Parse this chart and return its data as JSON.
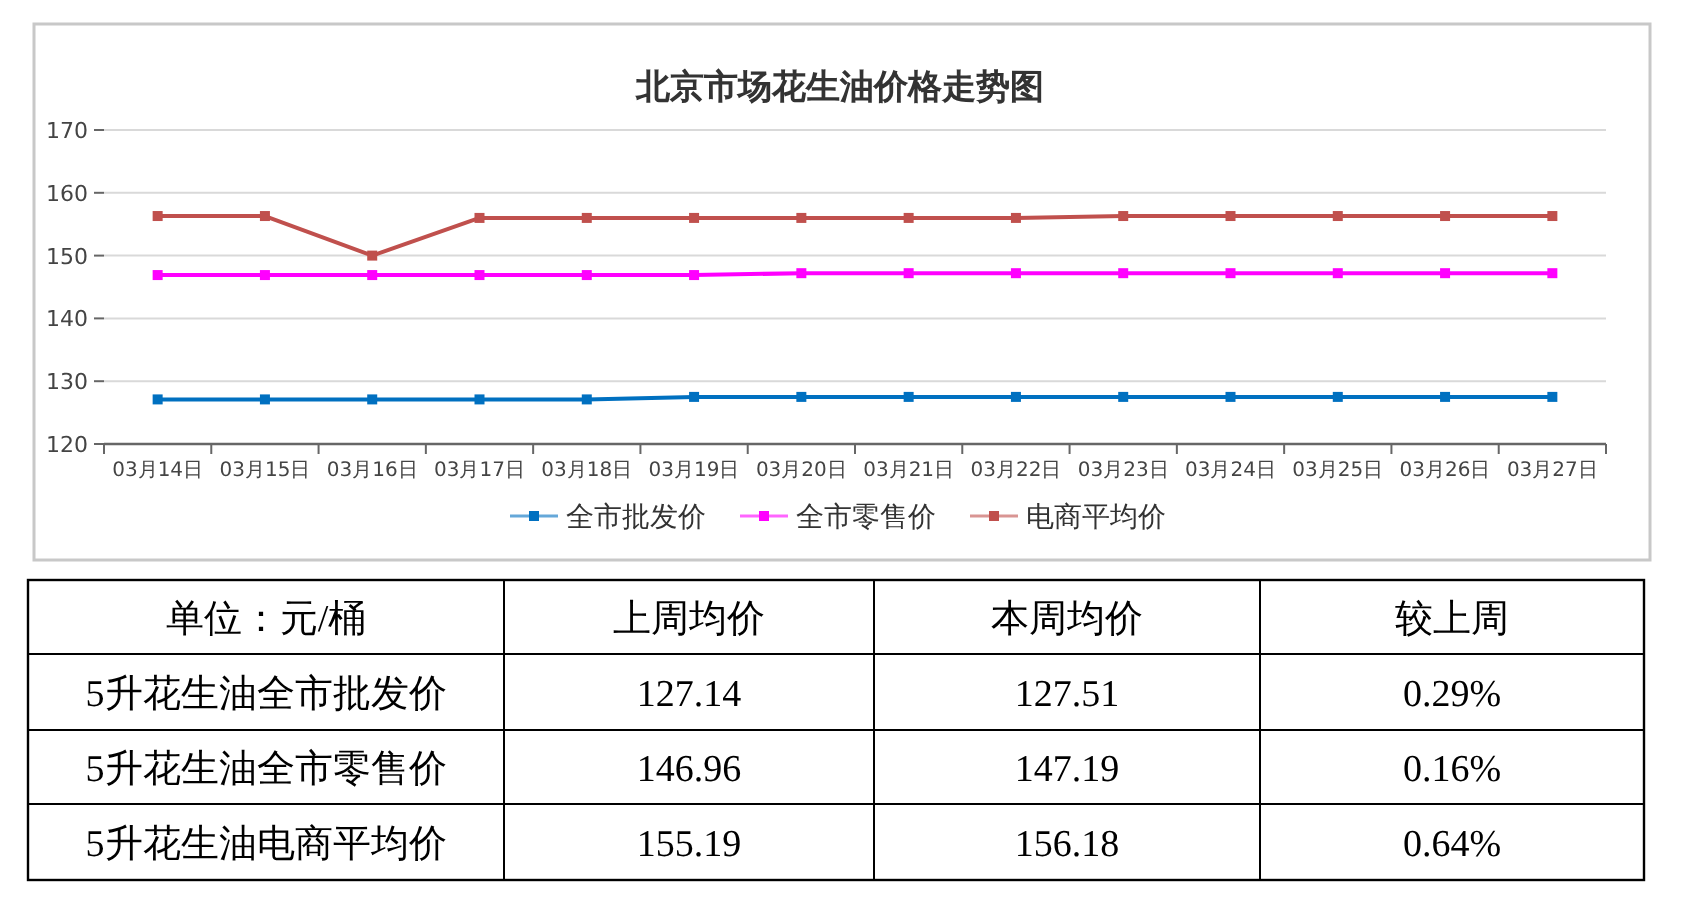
{
  "chart_data": [
    {
      "type": "line",
      "title": "北京市场花生油价格走势图",
      "categories": [
        "03月14日",
        "03月15日",
        "03月16日",
        "03月17日",
        "03月18日",
        "03月19日",
        "03月20日",
        "03月21日",
        "03月22日",
        "03月23日",
        "03月24日",
        "03月25日",
        "03月26日",
        "03月27日"
      ],
      "series": [
        {
          "name": "全市批发价",
          "color": "#0070c0",
          "values": [
            127.1,
            127.1,
            127.1,
            127.1,
            127.1,
            127.5,
            127.5,
            127.5,
            127.5,
            127.5,
            127.5,
            127.5,
            127.5,
            127.5
          ]
        },
        {
          "name": "全市零售价",
          "color": "#ff00ff",
          "values": [
            146.9,
            146.9,
            146.9,
            146.9,
            146.9,
            146.9,
            147.2,
            147.2,
            147.2,
            147.2,
            147.2,
            147.2,
            147.2,
            147.2
          ]
        },
        {
          "name": "电商平均价",
          "color": "#c0504d",
          "values": [
            156.3,
            156.3,
            150.0,
            156.0,
            156.0,
            156.0,
            156.0,
            156.0,
            156.0,
            156.3,
            156.3,
            156.3,
            156.3,
            156.3
          ]
        }
      ],
      "ylim": [
        120,
        170
      ],
      "yticks": [
        120,
        130,
        140,
        150,
        160,
        170
      ],
      "grid": "y",
      "legend": "bottom",
      "marker": "square",
      "line_style": "solid"
    },
    {
      "type": "other",
      "annotations": [
        "单位：元/桶",
        "上周均价",
        "本周均价",
        "较上周",
        "5升花生油全市批发价",
        "127.14",
        "127.51",
        "0.29%",
        "5升花生油全市零售价",
        "146.96",
        "147.19",
        "0.16%",
        "5升花生油电商平均价",
        "155.19",
        "156.18",
        "0.64%"
      ]
    }
  ]
}
